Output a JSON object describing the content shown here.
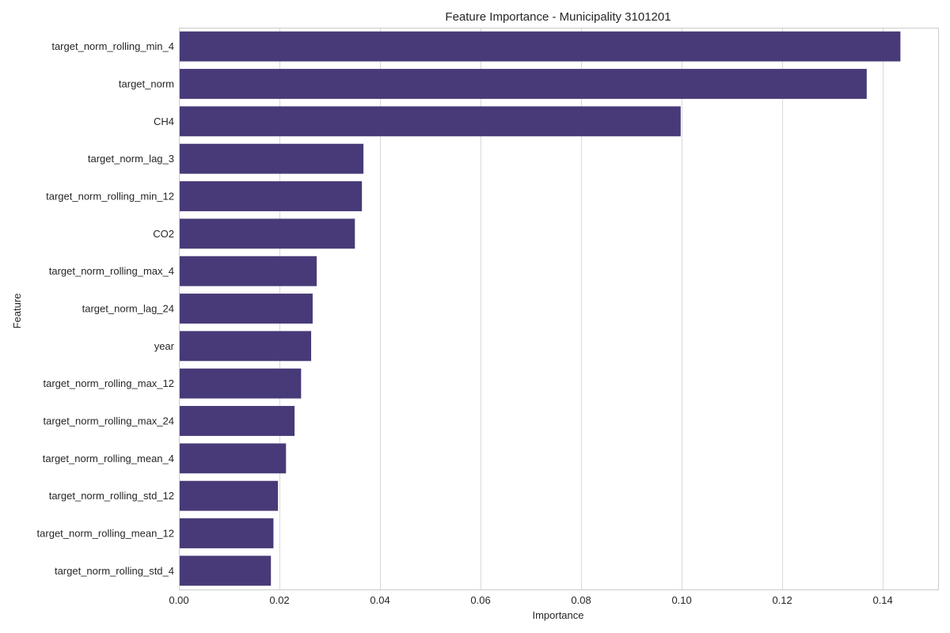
{
  "chart_data": {
    "type": "bar",
    "orientation": "horizontal",
    "title": "Feature Importance - Municipality 3101201",
    "xlabel": "Importance",
    "ylabel": "Feature",
    "xlim": [
      0,
      0.151
    ],
    "xticks": [
      0.0,
      0.02,
      0.04,
      0.06,
      0.08,
      0.1,
      0.12,
      0.14
    ],
    "xtick_labels": [
      "0.00",
      "0.02",
      "0.04",
      "0.06",
      "0.08",
      "0.10",
      "0.12",
      "0.14"
    ],
    "grid": true,
    "bar_color": "#483a78",
    "categories": [
      "target_norm_rolling_min_4",
      "target_norm",
      "CH4",
      "target_norm_lag_3",
      "target_norm_rolling_min_12",
      "CO2",
      "target_norm_rolling_max_4",
      "target_norm_lag_24",
      "year",
      "target_norm_rolling_max_12",
      "target_norm_rolling_max_24",
      "target_norm_rolling_mean_4",
      "target_norm_rolling_std_12",
      "target_norm_rolling_mean_12",
      "target_norm_rolling_std_4"
    ],
    "values": [
      0.1435,
      0.1368,
      0.0998,
      0.0367,
      0.0364,
      0.035,
      0.0274,
      0.0266,
      0.0263,
      0.0243,
      0.023,
      0.0213,
      0.0197,
      0.0188,
      0.0183
    ]
  }
}
